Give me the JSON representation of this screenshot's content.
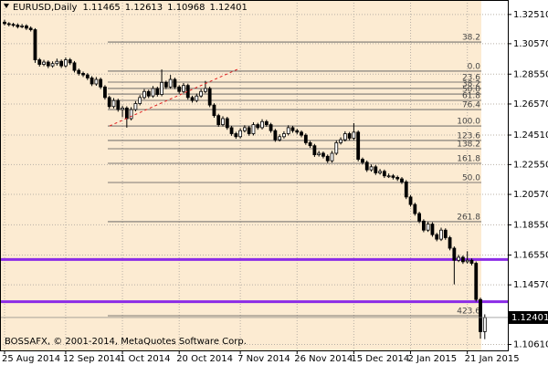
{
  "chart_data": {
    "type": "candlestick",
    "title": "EURUSD,Daily",
    "header_values": [
      1.11465,
      1.12613,
      1.10968,
      1.12401
    ],
    "last_price": 1.12401,
    "footer": "BOSSAFX, © 2001-2014, MetaQuotes Software Corp.",
    "grid": true,
    "background": "#fcebd2",
    "up_color": "#ffffff",
    "down_color": "#000000",
    "ylim": [
      1.1022,
      1.3347
    ],
    "yticks": [
      {
        "value": 1.3251,
        "label": "1.32510"
      },
      {
        "value": 1.3057,
        "label": "1.30570"
      },
      {
        "value": 1.2855,
        "label": "1.28550"
      },
      {
        "value": 1.2657,
        "label": "1.26570"
      },
      {
        "value": 1.2451,
        "label": "1.24510"
      },
      {
        "value": 1.2255,
        "label": "1.22550"
      },
      {
        "value": 1.2057,
        "label": "1.20570"
      },
      {
        "value": 1.1855,
        "label": "1.18550"
      },
      {
        "value": 1.1655,
        "label": "1.16550"
      },
      {
        "value": 1.1457,
        "label": "1.14570"
      },
      {
        "value": 1.1061,
        "label": "1.10610"
      }
    ],
    "hlines": {
      "color": "#8b2be6",
      "prices": [
        1.1625,
        1.1345
      ]
    },
    "fib_levels": [
      {
        "label": "38.2",
        "price": 1.3068
      },
      {
        "label": "0.0",
        "price": 1.2875
      },
      {
        "label": "23.6",
        "price": 1.2802
      },
      {
        "label": "38.2",
        "price": 1.276
      },
      {
        "label": "50.0",
        "price": 1.2723
      },
      {
        "label": "61.8",
        "price": 1.2681
      },
      {
        "label": "76.4",
        "price": 1.262
      },
      {
        "label": "100.0",
        "price": 1.2511
      },
      {
        "label": "123.6",
        "price": 1.2415
      },
      {
        "label": "138.2",
        "price": 1.236
      },
      {
        "label": "161.8",
        "price": 1.2263
      },
      {
        "label": "50.0",
        "price": 1.2136
      },
      {
        "label": "261.8",
        "price": 1.1876
      },
      {
        "label": "423.6",
        "price": 1.1252
      }
    ],
    "categories": [
      "25 Aug 2014",
      null,
      null,
      null,
      null,
      null,
      null,
      null,
      null,
      null,
      null,
      null,
      null,
      null,
      "12 Sep 2014",
      null,
      null,
      null,
      null,
      null,
      null,
      null,
      null,
      null,
      null,
      null,
      null,
      "1 Oct 2014",
      null,
      null,
      null,
      null,
      null,
      null,
      null,
      null,
      null,
      null,
      null,
      null,
      "20 Oct 2014",
      null,
      null,
      null,
      null,
      null,
      null,
      null,
      null,
      null,
      null,
      null,
      null,
      null,
      "7 Nov 2014",
      null,
      null,
      null,
      null,
      null,
      null,
      null,
      null,
      null,
      null,
      null,
      null,
      "26 Nov 2014",
      null,
      null,
      null,
      null,
      null,
      null,
      null,
      null,
      null,
      null,
      null,
      null,
      "15 Dec 2014",
      null,
      null,
      null,
      null,
      null,
      null,
      null,
      null,
      null,
      null,
      null,
      null,
      "2 Jan 2015",
      null,
      null,
      null,
      null,
      null,
      null,
      null,
      null,
      null,
      null,
      null,
      null,
      "21 Jan 2015",
      null,
      null,
      null,
      null
    ],
    "ohlc": [
      [
        1.32,
        1.3215,
        1.3178,
        1.319
      ],
      [
        1.319,
        1.32,
        1.3172,
        1.3185
      ],
      [
        1.3185,
        1.3196,
        1.3168,
        1.318
      ],
      [
        1.318,
        1.3192,
        1.3158,
        1.317
      ],
      [
        1.317,
        1.3188,
        1.316,
        1.3175
      ],
      [
        1.3175,
        1.3186,
        1.3148,
        1.316
      ],
      [
        1.316,
        1.3172,
        1.3138,
        1.315
      ],
      [
        1.315,
        1.316,
        1.293,
        1.295
      ],
      [
        1.295,
        1.2962,
        1.2905,
        1.292
      ],
      [
        1.292,
        1.295,
        1.2908,
        1.2935
      ],
      [
        1.2935,
        1.2946,
        1.2895,
        1.291
      ],
      [
        1.291,
        1.294,
        1.2898,
        1.2925
      ],
      [
        1.2925,
        1.2958,
        1.2912,
        1.294
      ],
      [
        1.294,
        1.2952,
        1.2896,
        1.291
      ],
      [
        1.291,
        1.2966,
        1.2898,
        1.295
      ],
      [
        1.295,
        1.2962,
        1.2916,
        1.293
      ],
      [
        1.293,
        1.2942,
        1.2866,
        1.288
      ],
      [
        1.288,
        1.2892,
        1.2846,
        1.286
      ],
      [
        1.286,
        1.2872,
        1.2836,
        1.285
      ],
      [
        1.285,
        1.2862,
        1.2816,
        1.283
      ],
      [
        1.283,
        1.2842,
        1.2776,
        1.279
      ],
      [
        1.279,
        1.2836,
        1.2778,
        1.282
      ],
      [
        1.282,
        1.2832,
        1.2756,
        1.277
      ],
      [
        1.277,
        1.2782,
        1.2686,
        1.27
      ],
      [
        1.27,
        1.2712,
        1.2626,
        1.264
      ],
      [
        1.264,
        1.2696,
        1.2628,
        1.268
      ],
      [
        1.268,
        1.2692,
        1.2606,
        1.262
      ],
      [
        1.262,
        1.2646,
        1.257,
        1.263
      ],
      [
        1.263,
        1.2642,
        1.25,
        1.256
      ],
      [
        1.256,
        1.2636,
        1.2548,
        1.262
      ],
      [
        1.262,
        1.2676,
        1.2608,
        1.266
      ],
      [
        1.266,
        1.2716,
        1.2648,
        1.27
      ],
      [
        1.27,
        1.2756,
        1.2688,
        1.274
      ],
      [
        1.274,
        1.2752,
        1.2696,
        1.271
      ],
      [
        1.271,
        1.2776,
        1.2698,
        1.276
      ],
      [
        1.276,
        1.2772,
        1.2706,
        1.272
      ],
      [
        1.272,
        1.2886,
        1.2708,
        1.28
      ],
      [
        1.28,
        1.2812,
        1.2756,
        1.277
      ],
      [
        1.277,
        1.285,
        1.2758,
        1.282
      ],
      [
        1.282,
        1.2832,
        1.2756,
        1.277
      ],
      [
        1.277,
        1.2782,
        1.2726,
        1.274
      ],
      [
        1.274,
        1.2796,
        1.2728,
        1.278
      ],
      [
        1.278,
        1.2792,
        1.2686,
        1.27
      ],
      [
        1.27,
        1.2712,
        1.2666,
        1.268
      ],
      [
        1.268,
        1.2726,
        1.2668,
        1.271
      ],
      [
        1.271,
        1.2756,
        1.2698,
        1.274
      ],
      [
        1.274,
        1.281,
        1.2728,
        1.276
      ],
      [
        1.276,
        1.2772,
        1.2636,
        1.265
      ],
      [
        1.265,
        1.2662,
        1.2566,
        1.258
      ],
      [
        1.258,
        1.2592,
        1.2506,
        1.252
      ],
      [
        1.252,
        1.2576,
        1.2508,
        1.256
      ],
      [
        1.256,
        1.2572,
        1.2486,
        1.25
      ],
      [
        1.25,
        1.2512,
        1.2446,
        1.246
      ],
      [
        1.246,
        1.2472,
        1.2426,
        1.244
      ],
      [
        1.244,
        1.2496,
        1.2428,
        1.248
      ],
      [
        1.248,
        1.2516,
        1.2468,
        1.25
      ],
      [
        1.25,
        1.2512,
        1.2446,
        1.246
      ],
      [
        1.246,
        1.2536,
        1.2448,
        1.252
      ],
      [
        1.252,
        1.2532,
        1.2486,
        1.25
      ],
      [
        1.25,
        1.2556,
        1.2488,
        1.254
      ],
      [
        1.254,
        1.2552,
        1.2506,
        1.252
      ],
      [
        1.252,
        1.2532,
        1.2466,
        1.248
      ],
      [
        1.248,
        1.2492,
        1.2406,
        1.242
      ],
      [
        1.242,
        1.2456,
        1.2408,
        1.244
      ],
      [
        1.244,
        1.2476,
        1.2428,
        1.246
      ],
      [
        1.246,
        1.2516,
        1.2448,
        1.25
      ],
      [
        1.25,
        1.2512,
        1.2466,
        1.248
      ],
      [
        1.248,
        1.2492,
        1.2456,
        1.247
      ],
      [
        1.247,
        1.2482,
        1.2436,
        1.245
      ],
      [
        1.245,
        1.2462,
        1.2386,
        1.24
      ],
      [
        1.24,
        1.2412,
        1.2366,
        1.238
      ],
      [
        1.238,
        1.2392,
        1.2306,
        1.232
      ],
      [
        1.232,
        1.2346,
        1.2308,
        1.233
      ],
      [
        1.233,
        1.2342,
        1.2296,
        1.231
      ],
      [
        1.231,
        1.2322,
        1.2266,
        1.228
      ],
      [
        1.228,
        1.2346,
        1.2268,
        1.233
      ],
      [
        1.233,
        1.2416,
        1.2318,
        1.24
      ],
      [
        1.24,
        1.2436,
        1.2388,
        1.242
      ],
      [
        1.242,
        1.2476,
        1.2408,
        1.246
      ],
      [
        1.246,
        1.2472,
        1.2416,
        1.243
      ],
      [
        1.243,
        1.253,
        1.2418,
        1.247
      ],
      [
        1.247,
        1.2482,
        1.2276,
        1.229
      ],
      [
        1.229,
        1.2302,
        1.2256,
        1.227
      ],
      [
        1.227,
        1.2282,
        1.2206,
        1.222
      ],
      [
        1.222,
        1.2256,
        1.2208,
        1.224
      ],
      [
        1.224,
        1.2252,
        1.2186,
        1.22
      ],
      [
        1.22,
        1.2226,
        1.2188,
        1.221
      ],
      [
        1.221,
        1.2222,
        1.2166,
        1.218
      ],
      [
        1.218,
        1.2196,
        1.2166,
        1.218
      ],
      [
        1.218,
        1.2192,
        1.2156,
        1.217
      ],
      [
        1.217,
        1.2182,
        1.2146,
        1.216
      ],
      [
        1.216,
        1.2172,
        1.2126,
        1.214
      ],
      [
        1.214,
        1.2152,
        1.2026,
        1.204
      ],
      [
        1.204,
        1.2052,
        1.1976,
        1.199
      ],
      [
        1.199,
        1.2002,
        1.1916,
        1.193
      ],
      [
        1.193,
        1.1942,
        1.1866,
        1.188
      ],
      [
        1.188,
        1.1892,
        1.1806,
        1.182
      ],
      [
        1.182,
        1.1876,
        1.1808,
        1.186
      ],
      [
        1.186,
        1.1872,
        1.1776,
        1.179
      ],
      [
        1.179,
        1.1802,
        1.1746,
        1.176
      ],
      [
        1.176,
        1.1836,
        1.1748,
        1.182
      ],
      [
        1.182,
        1.1832,
        1.1756,
        1.177
      ],
      [
        1.177,
        1.1782,
        1.1686,
        1.17
      ],
      [
        1.17,
        1.1712,
        1.146,
        1.162
      ],
      [
        1.162,
        1.1656,
        1.1608,
        1.164
      ],
      [
        1.164,
        1.1652,
        1.1596,
        1.161
      ],
      [
        1.161,
        1.168,
        1.1598,
        1.162
      ],
      [
        1.162,
        1.1632,
        1.1586,
        1.16
      ],
      [
        1.16,
        1.1612,
        1.1346,
        1.136
      ],
      [
        1.136,
        1.1372,
        1.11,
        1.1146
      ],
      [
        1.11465,
        1.12613,
        1.10968,
        1.12401
      ]
    ]
  }
}
